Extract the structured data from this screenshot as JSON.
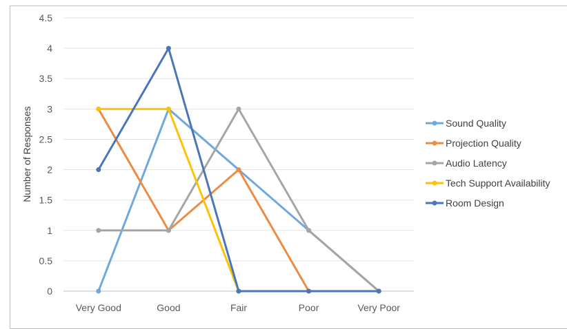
{
  "chart_data": {
    "type": "line",
    "title": "",
    "xlabel": "",
    "ylabel": "Number of Responses",
    "categories": [
      "Very Good",
      "Good",
      "Fair",
      "Poor",
      "Very Poor"
    ],
    "ylim": [
      0,
      4.5
    ],
    "yticks": [
      "0",
      "0.5",
      "1",
      "1.5",
      "2",
      "2.5",
      "3",
      "3.5",
      "4",
      "4.5"
    ],
    "grid": true,
    "legend_position": "right",
    "series": [
      {
        "name": "Sound Quality",
        "color": "#6fa8dc",
        "values": [
          0,
          3,
          2,
          1,
          0
        ]
      },
      {
        "name": "Projection Quality",
        "color": "#ed8a43",
        "values": [
          3,
          1,
          2,
          0,
          0
        ]
      },
      {
        "name": "Audio Latency",
        "color": "#a5a5a5",
        "values": [
          1,
          1,
          3,
          1,
          0
        ]
      },
      {
        "name": "Tech Support Availability",
        "color": "#fcc203",
        "values": [
          3,
          3,
          0,
          0,
          0
        ]
      },
      {
        "name": "Room Design",
        "color": "#4a76b8",
        "values": [
          2,
          4,
          0,
          0,
          0
        ]
      }
    ]
  }
}
